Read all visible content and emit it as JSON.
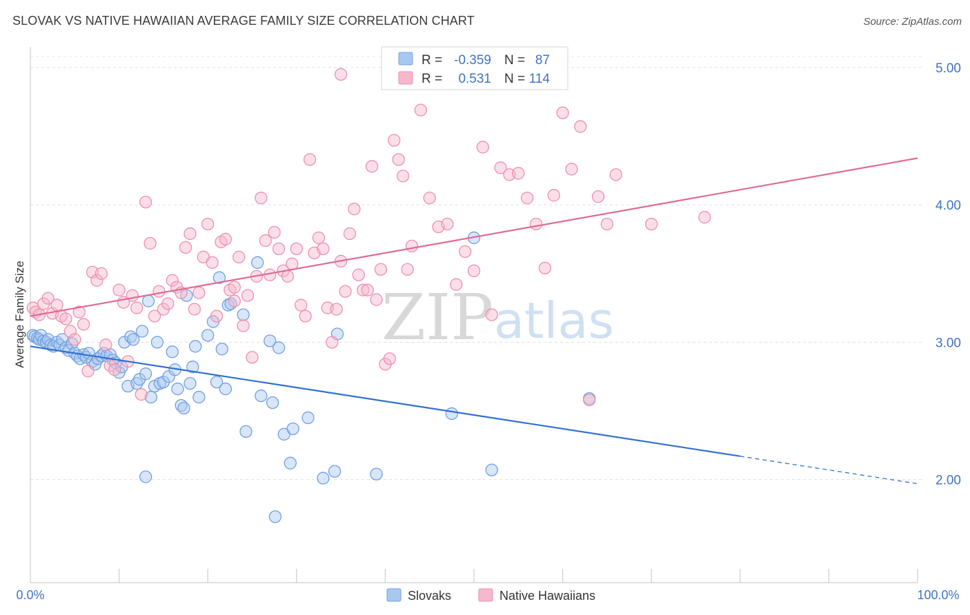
{
  "header": {
    "title": "SLOVAK VS NATIVE HAWAIIAN AVERAGE FAMILY SIZE CORRELATION CHART",
    "source": "Source: ZipAtlas.com"
  },
  "watermark": {
    "zip": "ZIP",
    "atlas": "atlas"
  },
  "legend": {
    "rows": [
      {
        "r_label": "R =",
        "r_value": "-0.359",
        "n_label": "N =",
        "n_value": "87",
        "color": "#a9c8f0"
      },
      {
        "r_label": "R =",
        "r_value": "0.531",
        "n_label": "N =",
        "n_value": "114",
        "color": "#f7b8cb"
      }
    ]
  },
  "bottom_legend": [
    {
      "label": "Slovaks",
      "color": "#a9c8f0"
    },
    {
      "label": "Native Hawaiians",
      "color": "#f7b8cb"
    }
  ],
  "chart_data": {
    "type": "scatter",
    "title": "SLOVAK VS NATIVE HAWAIIAN AVERAGE FAMILY SIZE CORRELATION CHART",
    "xlabel": "",
    "ylabel": "Average Family Size",
    "xlim": [
      0,
      100
    ],
    "ylim": [
      1.25,
      5.15
    ],
    "x_tick_labels": [
      "0.0%",
      "100.0%"
    ],
    "y_ticks": [
      2.0,
      3.0,
      4.0,
      5.0
    ],
    "y_tick_labels": [
      "2.00",
      "3.00",
      "4.00",
      "5.00"
    ],
    "grid": true,
    "legend_position": "top-center",
    "series": [
      {
        "name": "Slovaks",
        "color": "#6fa0e0",
        "fill": "#a9c8f0",
        "line_color": "#2f6fd0",
        "r": -0.359,
        "n": 87,
        "trend": {
          "x0": 0,
          "y0": 2.97,
          "x1": 80,
          "y1": 2.17,
          "dash_to": 100,
          "dash_y": 1.97
        },
        "points": [
          [
            0.3,
            3.05
          ],
          [
            0.5,
            3.04
          ],
          [
            0.8,
            3.03
          ],
          [
            1.0,
            3.02
          ],
          [
            1.2,
            3.05
          ],
          [
            1.5,
            3.01
          ],
          [
            1.8,
            3.0
          ],
          [
            2.0,
            3.02
          ],
          [
            2.3,
            2.98
          ],
          [
            2.6,
            2.97
          ],
          [
            3.0,
            3.0
          ],
          [
            3.3,
            2.98
          ],
          [
            3.6,
            3.02
          ],
          [
            4.0,
            2.96
          ],
          [
            4.3,
            2.94
          ],
          [
            4.7,
            2.99
          ],
          [
            5.0,
            2.92
          ],
          [
            5.3,
            2.9
          ],
          [
            5.6,
            2.88
          ],
          [
            6.0,
            2.91
          ],
          [
            6.3,
            2.89
          ],
          [
            6.6,
            2.92
          ],
          [
            7.0,
            2.86
          ],
          [
            7.3,
            2.84
          ],
          [
            7.6,
            2.88
          ],
          [
            8.0,
            2.9
          ],
          [
            8.3,
            2.92
          ],
          [
            8.6,
            2.9
          ],
          [
            9.0,
            2.91
          ],
          [
            9.3,
            2.87
          ],
          [
            9.6,
            2.85
          ],
          [
            10.0,
            2.78
          ],
          [
            10.3,
            2.82
          ],
          [
            10.6,
            3.0
          ],
          [
            11.0,
            2.68
          ],
          [
            11.3,
            3.04
          ],
          [
            11.6,
            3.02
          ],
          [
            12.0,
            2.7
          ],
          [
            12.3,
            2.73
          ],
          [
            12.6,
            3.08
          ],
          [
            13.0,
            2.77
          ],
          [
            13.3,
            3.3
          ],
          [
            13.6,
            2.6
          ],
          [
            14.0,
            2.68
          ],
          [
            14.3,
            3.0
          ],
          [
            14.6,
            2.7
          ],
          [
            15.0,
            2.71
          ],
          [
            15.6,
            2.75
          ],
          [
            16.0,
            2.93
          ],
          [
            16.3,
            2.8
          ],
          [
            16.6,
            2.66
          ],
          [
            17.0,
            2.54
          ],
          [
            17.3,
            2.52
          ],
          [
            17.6,
            3.34
          ],
          [
            18.0,
            2.7
          ],
          [
            18.3,
            2.82
          ],
          [
            18.6,
            2.97
          ],
          [
            19.0,
            2.6
          ],
          [
            20.0,
            3.05
          ],
          [
            20.6,
            3.15
          ],
          [
            21.0,
            2.71
          ],
          [
            21.3,
            3.47
          ],
          [
            21.6,
            2.95
          ],
          [
            22.0,
            2.66
          ],
          [
            22.3,
            3.27
          ],
          [
            22.6,
            3.28
          ],
          [
            24.0,
            3.2
          ],
          [
            24.3,
            2.35
          ],
          [
            25.6,
            3.58
          ],
          [
            26.0,
            2.61
          ],
          [
            27.0,
            3.01
          ],
          [
            27.3,
            2.56
          ],
          [
            27.6,
            1.73
          ],
          [
            28.0,
            2.96
          ],
          [
            28.6,
            2.33
          ],
          [
            29.3,
            2.12
          ],
          [
            29.6,
            2.37
          ],
          [
            31.3,
            2.45
          ],
          [
            33.0,
            2.01
          ],
          [
            34.3,
            2.06
          ],
          [
            34.6,
            3.06
          ],
          [
            39.0,
            2.04
          ],
          [
            47.5,
            2.48
          ],
          [
            50.0,
            3.76
          ],
          [
            52.0,
            2.07
          ],
          [
            63.0,
            2.59
          ],
          [
            13.0,
            2.02
          ]
        ]
      },
      {
        "name": "Native Hawaiians",
        "color": "#ee8fab",
        "fill": "#f7b8cb",
        "line_color": "#e06a93",
        "r": 0.531,
        "n": 114,
        "trend": {
          "x0": 0,
          "y0": 3.19,
          "x1": 100,
          "y1": 4.34
        },
        "points": [
          [
            0.3,
            3.25
          ],
          [
            0.6,
            3.22
          ],
          [
            1.0,
            3.2
          ],
          [
            1.5,
            3.28
          ],
          [
            2.0,
            3.32
          ],
          [
            2.5,
            3.21
          ],
          [
            3.0,
            3.27
          ],
          [
            3.5,
            3.19
          ],
          [
            4.0,
            3.17
          ],
          [
            4.5,
            3.08
          ],
          [
            5.0,
            3.02
          ],
          [
            5.5,
            3.22
          ],
          [
            6.0,
            3.13
          ],
          [
            6.5,
            2.79
          ],
          [
            7.0,
            3.51
          ],
          [
            7.5,
            3.45
          ],
          [
            8.0,
            3.5
          ],
          [
            8.5,
            2.98
          ],
          [
            9.0,
            2.83
          ],
          [
            9.5,
            2.8
          ],
          [
            10.0,
            3.38
          ],
          [
            10.5,
            3.29
          ],
          [
            11.0,
            2.86
          ],
          [
            11.5,
            3.34
          ],
          [
            12.0,
            3.25
          ],
          [
            12.5,
            2.62
          ],
          [
            13.0,
            4.02
          ],
          [
            13.5,
            3.72
          ],
          [
            14.0,
            3.19
          ],
          [
            14.5,
            3.37
          ],
          [
            15.0,
            3.24
          ],
          [
            15.5,
            3.28
          ],
          [
            16.0,
            3.45
          ],
          [
            16.5,
            3.4
          ],
          [
            17.0,
            3.36
          ],
          [
            17.5,
            3.69
          ],
          [
            18.0,
            3.79
          ],
          [
            18.5,
            3.24
          ],
          [
            19.0,
            3.36
          ],
          [
            19.5,
            3.62
          ],
          [
            20.0,
            3.86
          ],
          [
            20.5,
            3.58
          ],
          [
            21.0,
            3.19
          ],
          [
            21.5,
            3.73
          ],
          [
            22.0,
            3.75
          ],
          [
            22.5,
            3.38
          ],
          [
            23.0,
            3.3
          ],
          [
            23.5,
            3.62
          ],
          [
            24.0,
            3.12
          ],
          [
            24.5,
            3.34
          ],
          [
            25.0,
            2.89
          ],
          [
            25.5,
            3.48
          ],
          [
            26.0,
            4.05
          ],
          [
            26.5,
            3.74
          ],
          [
            27.0,
            3.49
          ],
          [
            27.5,
            3.8
          ],
          [
            28.0,
            3.68
          ],
          [
            28.5,
            3.52
          ],
          [
            29.0,
            3.48
          ],
          [
            29.5,
            3.57
          ],
          [
            30.0,
            3.68
          ],
          [
            30.5,
            3.27
          ],
          [
            31.0,
            3.19
          ],
          [
            31.5,
            4.33
          ],
          [
            32.0,
            3.65
          ],
          [
            32.5,
            3.76
          ],
          [
            33.0,
            3.68
          ],
          [
            33.5,
            3.25
          ],
          [
            34.0,
            3.0
          ],
          [
            34.5,
            3.24
          ],
          [
            35.0,
            3.59
          ],
          [
            35.5,
            3.37
          ],
          [
            36.0,
            3.79
          ],
          [
            36.5,
            3.97
          ],
          [
            37.0,
            3.49
          ],
          [
            37.5,
            3.38
          ],
          [
            38.0,
            3.38
          ],
          [
            38.5,
            4.28
          ],
          [
            39.0,
            3.31
          ],
          [
            39.5,
            3.53
          ],
          [
            40.0,
            2.84
          ],
          [
            40.5,
            2.88
          ],
          [
            41.0,
            4.47
          ],
          [
            41.5,
            4.33
          ],
          [
            42.0,
            4.21
          ],
          [
            42.5,
            3.53
          ],
          [
            43.0,
            3.7
          ],
          [
            44.0,
            4.69
          ],
          [
            45.0,
            4.05
          ],
          [
            46.0,
            3.84
          ],
          [
            47.0,
            3.86
          ],
          [
            48.0,
            3.42
          ],
          [
            49.0,
            3.66
          ],
          [
            50.0,
            3.52
          ],
          [
            51.0,
            4.42
          ],
          [
            52.0,
            3.2
          ],
          [
            53.0,
            4.27
          ],
          [
            54.0,
            4.22
          ],
          [
            55.0,
            4.23
          ],
          [
            56.0,
            4.05
          ],
          [
            57.0,
            3.86
          ],
          [
            58.0,
            3.54
          ],
          [
            59.0,
            4.07
          ],
          [
            60.0,
            4.67
          ],
          [
            61.0,
            4.26
          ],
          [
            62.0,
            4.57
          ],
          [
            63.0,
            2.58
          ],
          [
            64.0,
            4.06
          ],
          [
            65.0,
            3.86
          ],
          [
            66.0,
            4.22
          ],
          [
            35.0,
            4.95
          ],
          [
            76.0,
            3.91
          ],
          [
            70.0,
            3.86
          ],
          [
            23.0,
            3.4
          ]
        ]
      }
    ]
  }
}
